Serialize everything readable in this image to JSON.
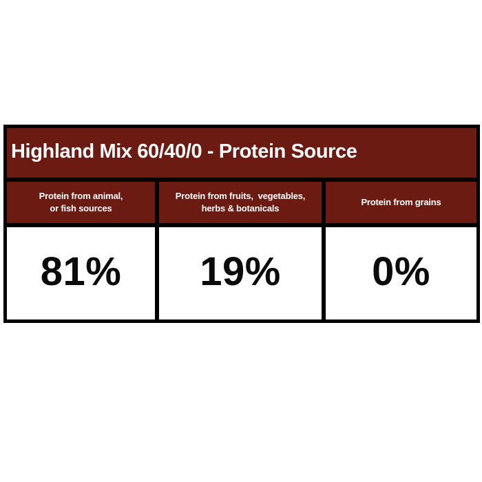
{
  "page": {
    "background": "#ffffff"
  },
  "table": {
    "title": "Highland Mix 60/40/0 - Protein Source",
    "colors": {
      "header_bg": "#6C1B12",
      "border": "#000000",
      "title_text": "#ffffff",
      "value_text": "#0b0b0b",
      "value_cell_bg": "#ffffff"
    },
    "columns": [
      {
        "header": "Protein from animal,\nor fish sources",
        "value": "81%"
      },
      {
        "header": "Protein from fruits,  vegetables,\nherbs & botanicals",
        "value": "19%"
      },
      {
        "header": "Protein from grains",
        "value": "0%"
      }
    ]
  },
  "chart_data": {
    "type": "table",
    "title": "Highland Mix 60/40/0 - Protein Source",
    "categories": [
      "Protein from animal, or fish sources",
      "Protein from fruits, vegetables, herbs & botanicals",
      "Protein from grains"
    ],
    "values": [
      81,
      19,
      0
    ],
    "unit": "%",
    "layout_hints": {
      "style": "bordered infographic table",
      "header_rows": 2,
      "grid": "on"
    }
  }
}
